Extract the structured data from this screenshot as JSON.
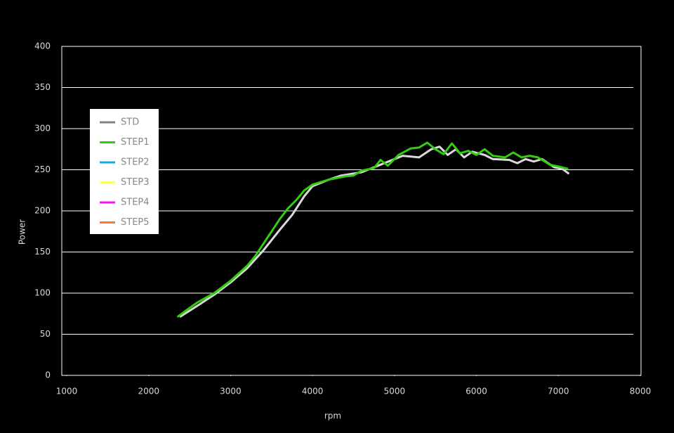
{
  "chart_data": {
    "type": "line",
    "x_label": "rpm",
    "y_label": "Power",
    "xlim": [
      1000,
      8000
    ],
    "xticks": [
      1000,
      2000,
      3000,
      4000,
      5000,
      6000,
      7000,
      8000
    ],
    "ylim": [
      0,
      400
    ],
    "yticks": [
      0,
      50,
      100,
      150,
      200,
      250,
      300,
      350,
      400
    ],
    "grid": true,
    "series": [
      {
        "name": "STD",
        "color": "#808080",
        "line_color": "#d9d9d9",
        "x": [
          2380,
          2600,
          2800,
          3000,
          3200,
          3400,
          3600,
          3750,
          3900,
          4000,
          4200,
          4350,
          4600,
          4800,
          5000,
          5100,
          5300,
          5450,
          5550,
          5650,
          5750,
          5850,
          5950,
          6100,
          6200,
          6400,
          6500,
          6600,
          6700,
          6800,
          6950,
          7050,
          7130
        ],
        "values": [
          71,
          85,
          98,
          113,
          130,
          152,
          177,
          195,
          218,
          230,
          238,
          243,
          247,
          255,
          263,
          267,
          265,
          275,
          278,
          268,
          275,
          265,
          272,
          268,
          263,
          262,
          258,
          263,
          260,
          263,
          253,
          251,
          245
        ]
      },
      {
        "name": "STEP1",
        "color": "#33cc11",
        "line_color": "#33cc11",
        "x": [
          2350,
          2500,
          2600,
          2800,
          3000,
          3200,
          3300,
          3400,
          3500,
          3600,
          3700,
          3800,
          3900,
          4000,
          4200,
          4400,
          4500,
          4600,
          4750,
          4830,
          4920,
          5050,
          5200,
          5300,
          5400,
          5500,
          5600,
          5700,
          5800,
          5900,
          6000,
          6100,
          6200,
          6350,
          6450,
          6550,
          6650,
          6750,
          6900,
          7000,
          7120
        ],
        "values": [
          71,
          82,
          89,
          100,
          115,
          133,
          145,
          160,
          175,
          190,
          203,
          213,
          225,
          232,
          238,
          242,
          243,
          249,
          252,
          262,
          255,
          268,
          276,
          277,
          283,
          275,
          269,
          282,
          270,
          273,
          268,
          275,
          267,
          265,
          271,
          265,
          267,
          265,
          256,
          254,
          251
        ]
      },
      {
        "name": "STEP2",
        "color": "#11aaee",
        "x": [],
        "values": []
      },
      {
        "name": "STEP3",
        "color": "#ffff66",
        "x": [],
        "values": []
      },
      {
        "name": "STEP4",
        "color": "#ff11ff",
        "x": [],
        "values": []
      },
      {
        "name": "STEP5",
        "color": "#ff7733",
        "x": [],
        "values": []
      }
    ]
  }
}
